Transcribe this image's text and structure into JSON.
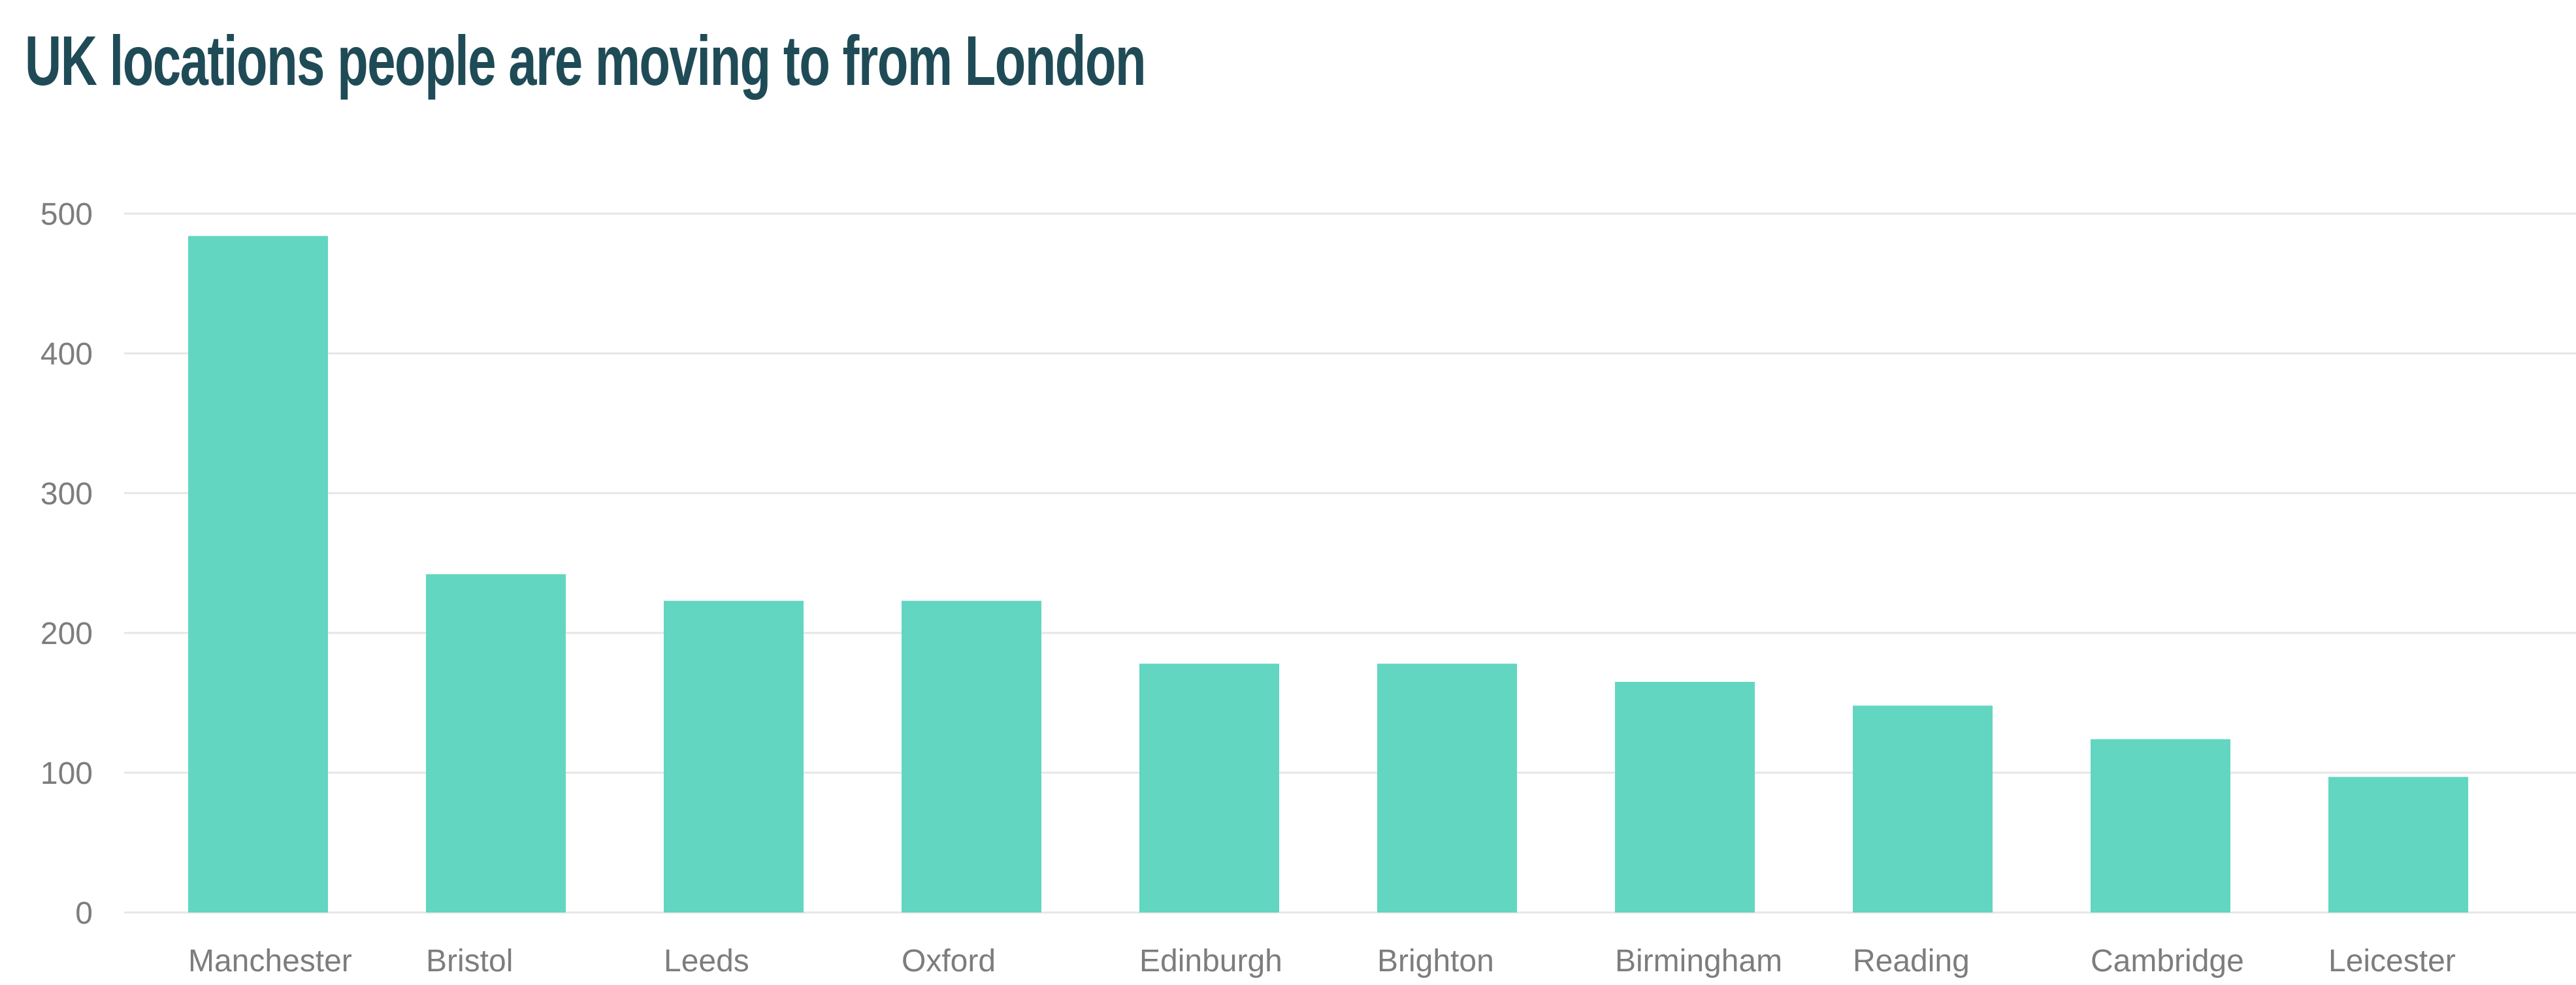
{
  "chart_data": {
    "type": "bar",
    "title": "UK locations people are moving to from London",
    "xlabel": "",
    "ylabel": "",
    "categories": [
      "Manchester",
      "Bristol",
      "Leeds",
      "Oxford",
      "Edinburgh",
      "Brighton",
      "Birmingham",
      "Reading",
      "Cambridge",
      "Leicester"
    ],
    "values": [
      484,
      242,
      223,
      223,
      178,
      178,
      165,
      148,
      124,
      97
    ],
    "ylim": [
      0,
      500
    ],
    "yticks": [
      0,
      100,
      200,
      300,
      400,
      500
    ],
    "grid": true,
    "legend": "none",
    "bar_color": "#62d6c1",
    "title_color": "#1f4b57",
    "tick_color": "#7d7d7d",
    "grid_color": "#e6e6e6"
  }
}
